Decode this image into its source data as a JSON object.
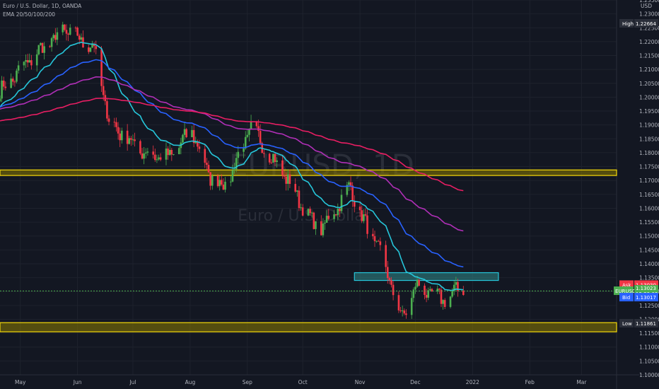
{
  "header": {
    "title": "Euro / U.S. Dollar, 1D, OANDA",
    "indicator": "EMA 20/50/100/200"
  },
  "watermark": {
    "symbol": "EURUSD, 1D",
    "name": "Euro / U.S. Dollar"
  },
  "colors": {
    "background": "#131722",
    "up": "#4caf50",
    "down": "#f23645",
    "ema20": "#26c6da",
    "ema50": "#2962ff",
    "ema100": "#b02fb7",
    "ema200": "#e91e63",
    "zone_yellow": "#f5d90a",
    "zone_cyan": "#26c6da",
    "price_line": "#4caf50"
  },
  "chart_data": {
    "type": "candlestick",
    "title": "Euro / U.S. Dollar, 1D, OANDA",
    "currency": "USD",
    "ylim": [
      1.1,
      1.235
    ],
    "y_ticks": [
      "1.10000",
      "1.10500",
      "1.11000",
      "1.11500",
      "1.12000",
      "1.12500",
      "1.13000",
      "1.13500",
      "1.14000",
      "1.14500",
      "1.15000",
      "1.15500",
      "1.16000",
      "1.16500",
      "1.17000",
      "1.17500",
      "1.18000",
      "1.18500",
      "1.19000",
      "1.19500",
      "1.20000",
      "1.20500",
      "1.21000",
      "1.21500",
      "1.22000",
      "1.22500",
      "1.23000",
      "1.23500"
    ],
    "x_domain": [
      "2021-04-20",
      "2022-03-20"
    ],
    "x_ticks": [
      {
        "label": "May",
        "date": "2021-05-01"
      },
      {
        "label": "Jun",
        "date": "2021-06-01"
      },
      {
        "label": "Jul",
        "date": "2021-07-01"
      },
      {
        "label": "Aug",
        "date": "2021-08-01"
      },
      {
        "label": "Sep",
        "date": "2021-09-01"
      },
      {
        "label": "Oct",
        "date": "2021-10-01"
      },
      {
        "label": "Nov",
        "date": "2021-11-01"
      },
      {
        "label": "Dec",
        "date": "2021-12-01"
      },
      {
        "label": "2022",
        "date": "2022-01-01"
      },
      {
        "label": "Feb",
        "date": "2022-02-01"
      },
      {
        "label": "Mar",
        "date": "2022-03-01"
      }
    ],
    "path_knots": [
      [
        "2021-04-20",
        1.202
      ],
      [
        "2021-05-10",
        1.216
      ],
      [
        "2021-05-25",
        1.224
      ],
      [
        "2021-06-10",
        1.218
      ],
      [
        "2021-06-18",
        1.191
      ],
      [
        "2021-07-07",
        1.18
      ],
      [
        "2021-07-20",
        1.178
      ],
      [
        "2021-08-02",
        1.188
      ],
      [
        "2021-08-11",
        1.172
      ],
      [
        "2021-08-20",
        1.168
      ],
      [
        "2021-09-03",
        1.189
      ],
      [
        "2021-09-22",
        1.171
      ],
      [
        "2021-10-06",
        1.155
      ],
      [
        "2021-10-12",
        1.153
      ],
      [
        "2021-10-27",
        1.168
      ],
      [
        "2021-11-01",
        1.158
      ],
      [
        "2021-11-12",
        1.144
      ],
      [
        "2021-11-24",
        1.12
      ],
      [
        "2021-12-01",
        1.132
      ],
      [
        "2021-12-15",
        1.127
      ],
      [
        "2021-12-27",
        1.1315
      ]
    ],
    "series": [
      {
        "name": "EMA 20",
        "ema_period": 20
      },
      {
        "name": "EMA 50",
        "ema_period": 50
      },
      {
        "name": "EMA 100",
        "ema_period": 100
      },
      {
        "name": "EMA 200",
        "ema_period": 200
      }
    ],
    "zones": [
      {
        "kind": "horizontal",
        "from": 1.1718,
        "to": 1.1738,
        "color": "#f5d90a",
        "fill": "#8a7a00"
      },
      {
        "kind": "horizontal",
        "from": 1.1155,
        "to": 1.1188,
        "color": "#f5d90a",
        "fill": "#8a7a00"
      },
      {
        "kind": "box",
        "x_from": "2021-10-29",
        "x_to": "2022-01-15",
        "from": 1.134,
        "to": 1.1368,
        "color": "#26c6da",
        "fill": "#2f8a8a"
      }
    ],
    "price_line": 1.1302,
    "labels": {
      "high_label": "High",
      "high_value": "1.22664",
      "low_label": "Low",
      "low_value": "1.11861",
      "ask_label": "Ask",
      "ask_value": "1.13030",
      "symbol_label": "EURUSD",
      "last_value": "1.13023",
      "countdown": "12:29:02",
      "bid_label": "Bid",
      "bid_value": "1.13017"
    }
  }
}
